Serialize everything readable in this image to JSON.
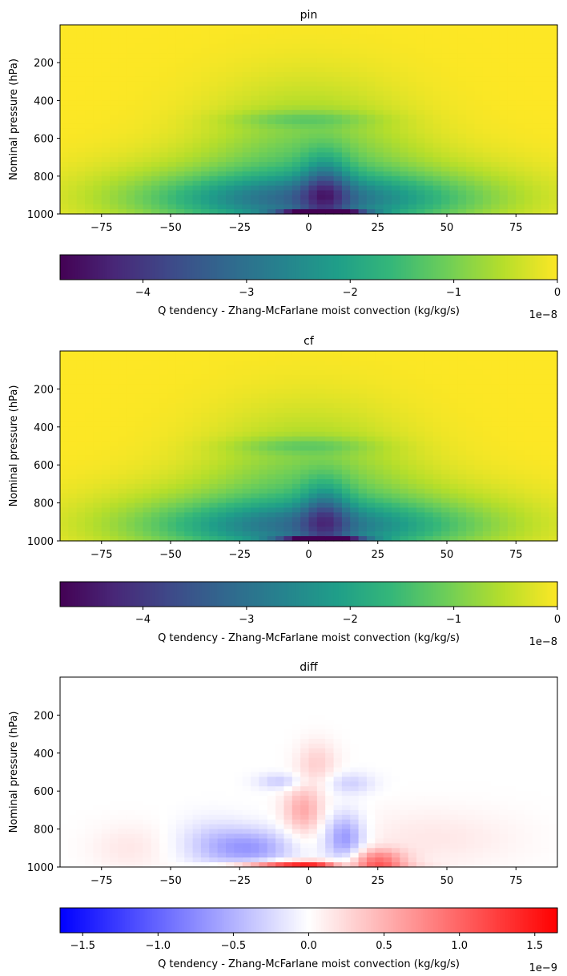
{
  "figure": {
    "colorbar_label": "Q tendency - Zhang-McFarlane moist convection (kg/kg/s)"
  },
  "chart_data": [
    {
      "type": "heatmap",
      "title": "pin",
      "ylabel": "Nominal pressure (hPa)",
      "xlabel": "",
      "xlim": [
        -90,
        90
      ],
      "ylim": [
        1000,
        0
      ],
      "xticks": [
        -75,
        -50,
        -25,
        0,
        25,
        50,
        75
      ],
      "yticks": [
        200,
        400,
        600,
        800,
        1000
      ],
      "colormap": "viridis",
      "colorbar": {
        "label": "Q tendency - Zhang-McFarlane moist convection (kg/kg/s)",
        "range": [
          -4.8,
          0
        ],
        "ticks": [
          -4,
          -3,
          -2,
          -1,
          0
        ],
        "scale_label": "1e−8"
      },
      "features": [
        {
          "x": 0,
          "p": 930,
          "sx": 38,
          "sp": 90,
          "v": -2.1
        },
        {
          "x": 6,
          "p": 870,
          "sx": 6,
          "sp": 130,
          "v": -1.4
        },
        {
          "x": 0,
          "p": 800,
          "sx": 28,
          "sp": 220,
          "v": -1.1
        },
        {
          "x": -50,
          "p": 880,
          "sx": 30,
          "sp": 140,
          "v": -0.45
        },
        {
          "x": 50,
          "p": 880,
          "sx": 30,
          "sp": 140,
          "v": -0.45
        },
        {
          "x": -2,
          "p": 500,
          "sx": 18,
          "sp": 30,
          "v": -0.5
        },
        {
          "x": 0,
          "p": 450,
          "sx": 25,
          "sp": 200,
          "v": -0.3
        },
        {
          "x": 5,
          "p": 995,
          "sx": 10,
          "sp": 12,
          "v": -4.5
        }
      ]
    },
    {
      "type": "heatmap",
      "title": "cf",
      "ylabel": "Nominal pressure (hPa)",
      "xlabel": "",
      "xlim": [
        -90,
        90
      ],
      "ylim": [
        1000,
        0
      ],
      "xticks": [
        -75,
        -50,
        -25,
        0,
        25,
        50,
        75
      ],
      "yticks": [
        200,
        400,
        600,
        800,
        1000
      ],
      "colormap": "viridis",
      "colorbar": {
        "label": "Q tendency - Zhang-McFarlane moist convection (kg/kg/s)",
        "range": [
          -4.8,
          0
        ],
        "ticks": [
          -4,
          -3,
          -2,
          -1,
          0
        ],
        "scale_label": "1e−8"
      },
      "features": [
        {
          "x": 0,
          "p": 930,
          "sx": 38,
          "sp": 90,
          "v": -2.0
        },
        {
          "x": 6,
          "p": 870,
          "sx": 6,
          "sp": 130,
          "v": -1.3
        },
        {
          "x": 0,
          "p": 800,
          "sx": 28,
          "sp": 220,
          "v": -1.05
        },
        {
          "x": -50,
          "p": 880,
          "sx": 30,
          "sp": 140,
          "v": -0.45
        },
        {
          "x": 50,
          "p": 880,
          "sx": 30,
          "sp": 140,
          "v": -0.45
        },
        {
          "x": -2,
          "p": 500,
          "sx": 18,
          "sp": 30,
          "v": -0.5
        },
        {
          "x": 0,
          "p": 450,
          "sx": 25,
          "sp": 200,
          "v": -0.3
        },
        {
          "x": 5,
          "p": 995,
          "sx": 10,
          "sp": 12,
          "v": -4.3
        }
      ]
    },
    {
      "type": "heatmap",
      "title": "diff",
      "ylabel": "Nominal pressure (hPa)",
      "xlabel": "",
      "xlim": [
        -90,
        90
      ],
      "ylim": [
        1000,
        0
      ],
      "xticks": [
        -75,
        -50,
        -25,
        0,
        25,
        50,
        75
      ],
      "yticks": [
        200,
        400,
        600,
        800,
        1000
      ],
      "colormap": "bwr",
      "colorbar": {
        "label": "Q tendency - Zhang-McFarlane moist convection (kg/kg/s)",
        "range": [
          -1.65,
          1.65
        ],
        "ticks": [
          -1.5,
          -1.0,
          -0.5,
          0.0,
          0.5,
          1.0,
          1.5
        ],
        "scale_label": "1e−9"
      },
      "features": [
        {
          "x": 0,
          "p": 990,
          "sx": 18,
          "sp": 15,
          "v": 1.5
        },
        {
          "x": 25,
          "p": 960,
          "sx": 7,
          "sp": 40,
          "v": 0.8
        },
        {
          "x": -2,
          "p": 700,
          "sx": 5,
          "sp": 90,
          "v": 0.55
        },
        {
          "x": 3,
          "p": 450,
          "sx": 5,
          "sp": 80,
          "v": 0.3
        },
        {
          "x": -20,
          "p": 900,
          "sx": 10,
          "sp": 70,
          "v": -0.6
        },
        {
          "x": 13,
          "p": 850,
          "sx": 5,
          "sp": 90,
          "v": -0.7
        },
        {
          "x": 14,
          "p": 990,
          "sx": 6,
          "sp": 14,
          "v": -0.8
        },
        {
          "x": -10,
          "p": 550,
          "sx": 6,
          "sp": 30,
          "v": -0.35
        },
        {
          "x": 15,
          "p": 560,
          "sx": 6,
          "sp": 40,
          "v": -0.3
        },
        {
          "x": -65,
          "p": 900,
          "sx": 10,
          "sp": 90,
          "v": 0.15
        },
        {
          "x": 45,
          "p": 850,
          "sx": 22,
          "sp": 110,
          "v": 0.15
        },
        {
          "x": -35,
          "p": 880,
          "sx": 9,
          "sp": 90,
          "v": -0.3
        }
      ]
    }
  ]
}
